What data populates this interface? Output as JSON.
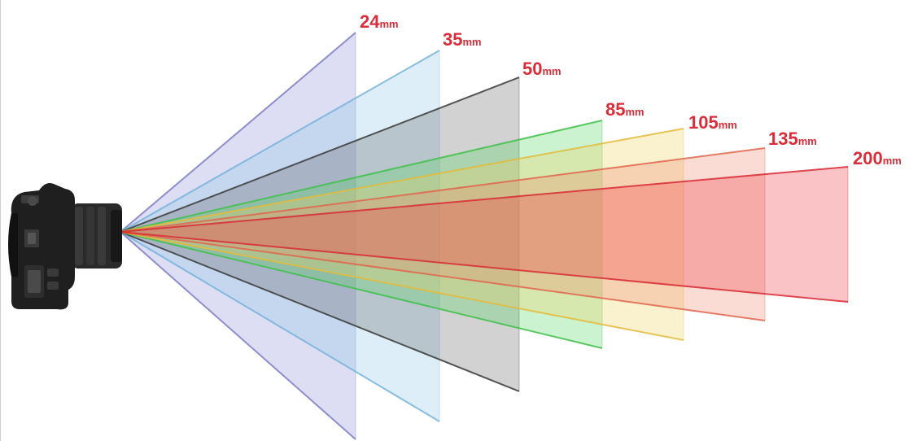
{
  "figure": {
    "unit": "mm",
    "lenses": [
      {
        "value": "24",
        "color": "#8f8fd6",
        "edge": "#7c7cc4"
      },
      {
        "value": "35",
        "color": "#8fc8e8",
        "edge": "#76b3da"
      },
      {
        "value": "50",
        "color": "#5c5c5c",
        "edge": "#3a3a3a"
      },
      {
        "value": "85",
        "color": "#56d660",
        "edge": "#3fbf4a"
      },
      {
        "value": "105",
        "color": "#f0d060",
        "edge": "#e3bb3c"
      },
      {
        "value": "135",
        "color": "#f08a70",
        "edge": "#e0654d"
      },
      {
        "value": "200",
        "color": "#f03c46",
        "edge": "#d82a34"
      }
    ]
  },
  "camera": {
    "icon": "dslr-camera-icon",
    "body_color": "#1f1f1f"
  }
}
